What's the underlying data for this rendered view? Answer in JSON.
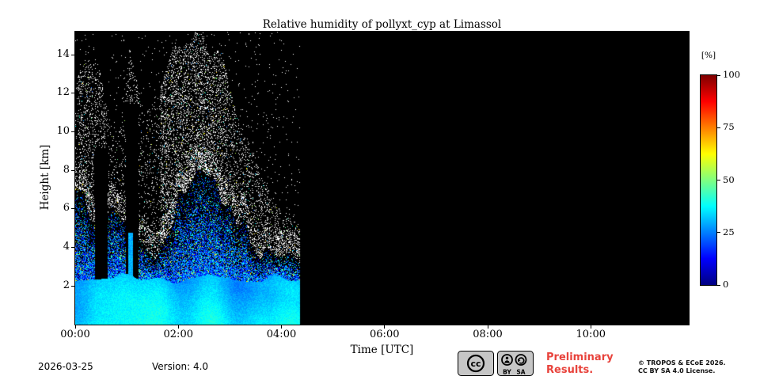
{
  "title": {
    "text": "Relative humidity of pollyxt_cyp at Limassol"
  },
  "axes": {
    "xlabel": "Time [UTC]",
    "ylabel": "Height [km]",
    "x_range_hours": [
      0,
      11.9
    ],
    "y_range_km": [
      0,
      15.2
    ],
    "x_ticks": [
      {
        "label": "00:00",
        "hour": 0
      },
      {
        "label": "02:00",
        "hour": 2
      },
      {
        "label": "04:00",
        "hour": 4
      },
      {
        "label": "06:00",
        "hour": 6
      },
      {
        "label": "08:00",
        "hour": 8
      },
      {
        "label": "10:00",
        "hour": 10
      }
    ],
    "y_ticks": [
      {
        "label": "2",
        "km": 2
      },
      {
        "label": "4",
        "km": 4
      },
      {
        "label": "6",
        "km": 6
      },
      {
        "label": "8",
        "km": 8
      },
      {
        "label": "10",
        "km": 10
      },
      {
        "label": "12",
        "km": 12
      },
      {
        "label": "14",
        "km": 14
      }
    ]
  },
  "colorbar": {
    "label": "[%]",
    "min": 0,
    "max": 100,
    "ticks": [
      0,
      25,
      50,
      75,
      100
    ],
    "colormap": "jet",
    "colormap_stops": [
      [
        0.0,
        "#000083"
      ],
      [
        0.125,
        "#0000ff"
      ],
      [
        0.375,
        "#00ffff"
      ],
      [
        0.625,
        "#ffff00"
      ],
      [
        0.875,
        "#ff0000"
      ],
      [
        1.0,
        "#800000"
      ]
    ]
  },
  "chart_data": {
    "type": "heatmap",
    "title": "Relative humidity of pollyxt_cyp at Limassol",
    "xlabel": "Time [UTC]",
    "ylabel": "Height [km]",
    "value_unit": "%",
    "value_range": [
      0,
      100
    ],
    "x_range_hours": [
      0,
      11.9
    ],
    "y_range_km": [
      0,
      15.2
    ],
    "background_no_data_color": "#000000",
    "data_coverage_hours": [
      0,
      4.3
    ],
    "null_means": "no signal / attenuated (rendered black)",
    "heights_km": [
      0.5,
      1.5,
      2.5,
      3.5,
      4.5,
      5.5,
      6.5,
      7.5
    ],
    "times_hours": [
      0,
      0.5,
      1,
      1.5,
      2,
      2.5,
      3,
      3.5,
      4
    ],
    "values_percent": [
      [
        31,
        31,
        30,
        30,
        32,
        33,
        31,
        30,
        30
      ],
      [
        29,
        28,
        28,
        28,
        30,
        31,
        29,
        28,
        27
      ],
      [
        25,
        null,
        23,
        25,
        28,
        30,
        26,
        22,
        20
      ],
      [
        20,
        null,
        18,
        16,
        26,
        28,
        22,
        15,
        null
      ],
      [
        15,
        null,
        12,
        10,
        22,
        26,
        18,
        10,
        null
      ],
      [
        12,
        null,
        null,
        null,
        18,
        22,
        12,
        null,
        null
      ],
      [
        10,
        null,
        null,
        null,
        15,
        20,
        null,
        null,
        null
      ],
      [
        null,
        null,
        null,
        null,
        12,
        16,
        null,
        null,
        null
      ]
    ],
    "signal_top_envelope_km": [
      [
        0,
        7.0
      ],
      [
        0.3,
        6.2
      ],
      [
        0.7,
        5.4
      ],
      [
        0.95,
        4.6
      ],
      [
        1.3,
        4.6
      ],
      [
        1.55,
        4.2
      ],
      [
        1.8,
        5.2
      ],
      [
        2.05,
        6.6
      ],
      [
        2.35,
        7.9
      ],
      [
        2.6,
        7.4
      ],
      [
        2.9,
        6.4
      ],
      [
        3.2,
        5.2
      ],
      [
        3.6,
        4.1
      ],
      [
        4.0,
        3.2
      ],
      [
        4.3,
        2.7
      ]
    ],
    "noise_top_envelope_km": [
      [
        0,
        12.5
      ],
      [
        0.2,
        14.0
      ],
      [
        0.5,
        13.0
      ],
      [
        0.8,
        9.5
      ],
      [
        1.05,
        15.0
      ],
      [
        1.3,
        11.5
      ],
      [
        1.6,
        12.0
      ],
      [
        1.9,
        14.8
      ],
      [
        2.5,
        15.0
      ],
      [
        2.9,
        13.5
      ],
      [
        3.2,
        10.5
      ],
      [
        3.6,
        8.0
      ],
      [
        4.0,
        6.0
      ],
      [
        4.3,
        4.8
      ]
    ],
    "attenuation_gaps_hours": [
      [
        0.38,
        0.62,
        9.2
      ],
      [
        0.98,
        1.22,
        11.5
      ]
    ],
    "mixed_layer_top_km": 2.5,
    "features": [
      "Lidar signal present only from 00:00 to ~04:15 UTC; remainder of the day is no-data (black)",
      "Moist boundary layer (RH ~25-35 %) below ~2.5 km throughout the measurement period",
      "Speckled low-RH region rising to a peak of ~8 km around 02:20-02:40 UTC",
      "Two attenuated black columns around 00:25-00:40 and 01:00-01:15 UTC with white noise above",
      "White retrieval-noise speckle above the signal region extending to ~15 km"
    ]
  },
  "footer": {
    "date": "2026-03-25",
    "version": "Version: 4.0",
    "preliminary_line1": "Preliminary",
    "preliminary_line2": "Results.",
    "preliminary_color": "#e8433c",
    "copyright_line1": "© TROPOS & ECoE 2026.",
    "copyright_line2": "CC BY SA 4.0 License.",
    "license_badge": {
      "cc": "cc",
      "by": "BY",
      "sa": "SA"
    }
  }
}
